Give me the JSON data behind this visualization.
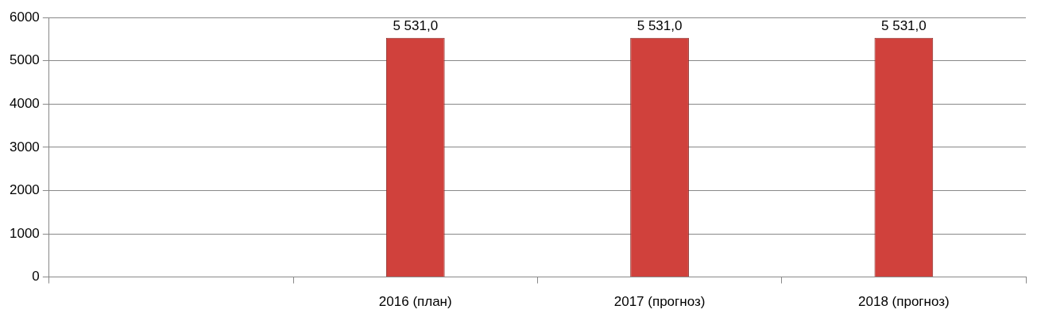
{
  "chart_data": {
    "type": "bar",
    "categories": [
      null,
      "2016 (план)",
      "2017 (прогноз)",
      "2018 (прогноз)"
    ],
    "values": [
      null,
      5531,
      5531,
      5531
    ],
    "value_labels": [
      null,
      "5 531,0",
      "5 531,0",
      "5 531,0"
    ],
    "color": "#d0413c",
    "ylim": [
      0,
      6000
    ],
    "yticks": [
      0,
      1000,
      2000,
      3000,
      4000,
      5000,
      6000
    ],
    "grid": "y",
    "legend": false
  }
}
